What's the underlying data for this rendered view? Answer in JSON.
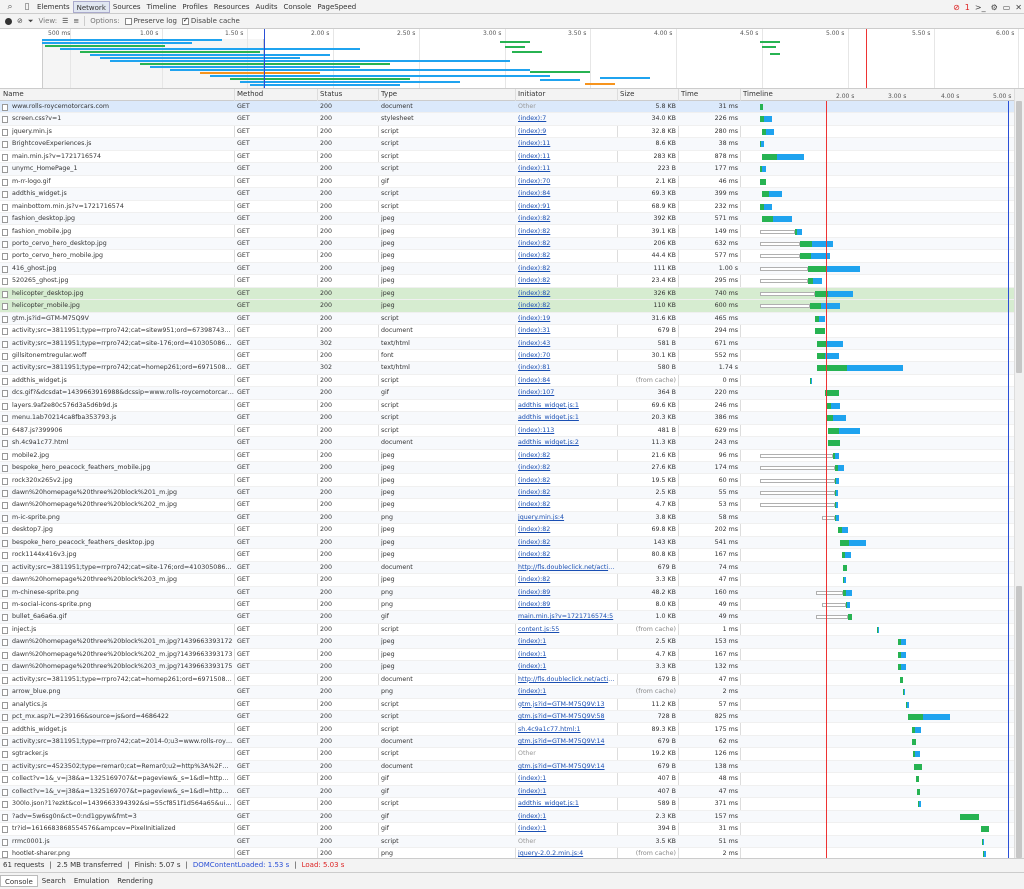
{
  "panel_tabs": [
    "Elements",
    "Network",
    "Sources",
    "Timeline",
    "Profiles",
    "Resources",
    "Audits",
    "Console",
    "PageSpeed"
  ],
  "active_tab": "Network",
  "error_count": "1",
  "toolbar": {
    "view_label": "View:",
    "options_label": "Options:",
    "preserve_log": "Preserve log",
    "disable_cache": "Disable cache"
  },
  "overview_ticks": [
    "500 ms",
    "1.00 s",
    "1.50 s",
    "2.00 s",
    "2.50 s",
    "3.00 s",
    "3.50 s",
    "4.00 s",
    "4.50 s",
    "5.00 s",
    "5.50 s",
    "6.00 s"
  ],
  "columns": {
    "name": "Name",
    "method": "Method",
    "status": "Status",
    "type": "Type",
    "initiator": "Initiator",
    "size": "Size",
    "time": "Time",
    "timeline": "Timeline"
  },
  "timeline_ticks": [
    "2.00 s",
    "3.00 s",
    "4.00 s",
    "5.00 s"
  ],
  "colors": {
    "waiting": "#27b352",
    "receiving": "#1fa3ef",
    "stalled": "#b0b0b0",
    "dns": "#f7941d",
    "load_line": "#e33",
    "dom_line": "#2a4fd6"
  },
  "requests": [
    {
      "name": "www.rolls-roycemotorcars.com",
      "method": "GET",
      "status": "200",
      "type": "document",
      "initiator": "Other",
      "size": "5.8 KB",
      "time": "31 ms"
    },
    {
      "name": "screen.css?v=1",
      "method": "GET",
      "status": "200",
      "type": "stylesheet",
      "initiator": "(index):7",
      "size": "34.0 KB",
      "time": "226 ms"
    },
    {
      "name": "jquery.min.js",
      "method": "GET",
      "status": "200",
      "type": "script",
      "initiator": "(index):9",
      "size": "32.8 KB",
      "time": "280 ms"
    },
    {
      "name": "BrightcoveExperiences.js",
      "method": "GET",
      "status": "200",
      "type": "script",
      "initiator": "(index):11",
      "size": "8.6 KB",
      "time": "38 ms"
    },
    {
      "name": "main.min.js?v=1721716574",
      "method": "GET",
      "status": "200",
      "type": "script",
      "initiator": "(index):11",
      "size": "283 KB",
      "time": "878 ms"
    },
    {
      "name": "unymc_HomePage_1",
      "method": "GET",
      "status": "200",
      "type": "script",
      "initiator": "(index):11",
      "size": "223 B",
      "time": "177 ms"
    },
    {
      "name": "m-rr-logo.gif",
      "method": "GET",
      "status": "200",
      "type": "gif",
      "initiator": "(index):70",
      "size": "2.1 KB",
      "time": "46 ms"
    },
    {
      "name": "addthis_widget.js",
      "method": "GET",
      "status": "200",
      "type": "script",
      "initiator": "(index):84",
      "size": "69.3 KB",
      "time": "399 ms"
    },
    {
      "name": "mainbottom.min.js?v=1721716574",
      "method": "GET",
      "status": "200",
      "type": "script",
      "initiator": "(index):91",
      "size": "68.9 KB",
      "time": "232 ms"
    },
    {
      "name": "fashion_desktop.jpg",
      "method": "GET",
      "status": "200",
      "type": "jpeg",
      "initiator": "(index):82",
      "size": "392 KB",
      "time": "571 ms"
    },
    {
      "name": "fashion_mobile.jpg",
      "method": "GET",
      "status": "200",
      "type": "jpeg",
      "initiator": "(index):82",
      "size": "39.1 KB",
      "time": "149 ms"
    },
    {
      "name": "porto_cervo_hero_desktop.jpg",
      "method": "GET",
      "status": "200",
      "type": "jpeg",
      "initiator": "(index):82",
      "size": "206 KB",
      "time": "632 ms"
    },
    {
      "name": "porto_cervo_hero_mobile.jpg",
      "method": "GET",
      "status": "200",
      "type": "jpeg",
      "initiator": "(index):82",
      "size": "44.4 KB",
      "time": "577 ms"
    },
    {
      "name": "416_ghost.jpg",
      "method": "GET",
      "status": "200",
      "type": "jpeg",
      "initiator": "(index):82",
      "size": "111 KB",
      "time": "1.00 s"
    },
    {
      "name": "520265_ghost.jpg",
      "method": "GET",
      "status": "200",
      "type": "jpeg",
      "initiator": "(index):82",
      "size": "23.4 KB",
      "time": "295 ms"
    },
    {
      "name": "helicopter_desktop.jpg",
      "method": "GET",
      "status": "200",
      "type": "jpeg",
      "initiator": "(index):82",
      "size": "326 KB",
      "time": "740 ms"
    },
    {
      "name": "helicopter_mobile.jpg",
      "method": "GET",
      "status": "200",
      "type": "jpeg",
      "initiator": "(index):82",
      "size": "110 KB",
      "time": "600 ms"
    },
    {
      "name": "gtm.js?id=GTM-M75Q9V",
      "method": "GET",
      "status": "200",
      "type": "script",
      "initiator": "(index):19",
      "size": "31.6 KB",
      "time": "465 ms"
    },
    {
      "name": "activity;src=3811951;type=rrpro742;cat=sitew951;ord=6739874342456.46",
      "method": "GET",
      "status": "200",
      "type": "document",
      "initiator": "(index):31",
      "size": "679 B",
      "time": "294 ms"
    },
    {
      "name": "activity;src=3811951;type=rrpro742;cat=site-176;ord=410305086988.95575",
      "method": "GET",
      "status": "302",
      "type": "text/html",
      "initiator": "(index):43",
      "size": "581 B",
      "time": "671 ms"
    },
    {
      "name": "gillsitonemtregular.woff",
      "method": "GET",
      "status": "200",
      "type": "font",
      "initiator": "(index):70",
      "size": "30.1 KB",
      "time": "552 ms"
    },
    {
      "name": "activity;src=3811951;type=rrpro742;cat=homep261;ord=6971508769784...",
      "method": "GET",
      "status": "302",
      "type": "text/html",
      "initiator": "(index):81",
      "size": "580 B",
      "time": "1.74 s"
    },
    {
      "name": "addthis_widget.js",
      "method": "GET",
      "status": "200",
      "type": "script",
      "initiator": "(index):84",
      "size": "(from cache)",
      "time": "0 ms"
    },
    {
      "name": "dcs.gif?&dcsdat=1439663916988&dcssip=www.rolls-roycemotorcars.com...",
      "method": "GET",
      "status": "200",
      "type": "gif",
      "initiator": "(index):107",
      "size": "364 B",
      "time": "220 ms"
    },
    {
      "name": "layers.9af2e80c576d3a5d6b9d.js",
      "method": "GET",
      "status": "200",
      "type": "script",
      "initiator": "addthis_widget.js:1",
      "size": "69.6 KB",
      "time": "246 ms"
    },
    {
      "name": "menu.1ab70214ca8fba353793.js",
      "method": "GET",
      "status": "200",
      "type": "script",
      "initiator": "addthis_widget.js:1",
      "size": "20.3 KB",
      "time": "386 ms"
    },
    {
      "name": "6487.js?399906",
      "method": "GET",
      "status": "200",
      "type": "script",
      "initiator": "(index):113",
      "size": "481 B",
      "time": "629 ms"
    },
    {
      "name": "sh.4c9a1c77.html",
      "method": "GET",
      "status": "200",
      "type": "document",
      "initiator": "addthis_widget.js:2",
      "size": "11.3 KB",
      "time": "243 ms"
    },
    {
      "name": "mobile2.jpg",
      "method": "GET",
      "status": "200",
      "type": "jpeg",
      "initiator": "(index):82",
      "size": "21.6 KB",
      "time": "96 ms"
    },
    {
      "name": "bespoke_hero_peacock_feathers_mobile.jpg",
      "method": "GET",
      "status": "200",
      "type": "jpeg",
      "initiator": "(index):82",
      "size": "27.6 KB",
      "time": "174 ms"
    },
    {
      "name": "rock320x265v2.jpg",
      "method": "GET",
      "status": "200",
      "type": "jpeg",
      "initiator": "(index):82",
      "size": "19.5 KB",
      "time": "60 ms"
    },
    {
      "name": "dawn%20homepage%20three%20block%201_m.jpg",
      "method": "GET",
      "status": "200",
      "type": "jpeg",
      "initiator": "(index):82",
      "size": "2.5 KB",
      "time": "55 ms"
    },
    {
      "name": "dawn%20homepage%20three%20block%202_m.jpg",
      "method": "GET",
      "status": "200",
      "type": "jpeg",
      "initiator": "(index):82",
      "size": "4.7 KB",
      "time": "53 ms"
    },
    {
      "name": "m-ic-sprite.png",
      "method": "GET",
      "status": "200",
      "type": "png",
      "initiator": "jquery.min.js:4",
      "size": "3.8 KB",
      "time": "58 ms"
    },
    {
      "name": "desktop7.jpg",
      "method": "GET",
      "status": "200",
      "type": "jpeg",
      "initiator": "(index):82",
      "size": "69.8 KB",
      "time": "202 ms"
    },
    {
      "name": "bespoke_hero_peacock_feathers_desktop.jpg",
      "method": "GET",
      "status": "200",
      "type": "jpeg",
      "initiator": "(index):82",
      "size": "143 KB",
      "time": "541 ms"
    },
    {
      "name": "rock1144x416v3.jpg",
      "method": "GET",
      "status": "200",
      "type": "jpeg",
      "initiator": "(index):82",
      "size": "80.8 KB",
      "time": "167 ms"
    },
    {
      "name": "activity;src=3811951;type=rrpro742;cat=site-176;ord=410305086988.95575",
      "method": "GET",
      "status": "200",
      "type": "document",
      "initiator": "http://fls.doubleclick.net/activit...",
      "size": "679 B",
      "time": "74 ms"
    },
    {
      "name": "dawn%20homepage%20three%20block%203_m.jpg",
      "method": "GET",
      "status": "200",
      "type": "jpeg",
      "initiator": "(index):82",
      "size": "3.3 KB",
      "time": "47 ms"
    },
    {
      "name": "m-chinese-sprite.png",
      "method": "GET",
      "status": "200",
      "type": "png",
      "initiator": "(index):89",
      "size": "48.2 KB",
      "time": "160 ms"
    },
    {
      "name": "m-social-icons-sprite.png",
      "method": "GET",
      "status": "200",
      "type": "png",
      "initiator": "(index):89",
      "size": "8.0 KB",
      "time": "49 ms"
    },
    {
      "name": "bullet_6a6a6a.gif",
      "method": "GET",
      "status": "200",
      "type": "gif",
      "initiator": "main.min.js?v=1721716574:5",
      "size": "1.0 KB",
      "time": "49 ms"
    },
    {
      "name": "inject.js",
      "method": "GET",
      "status": "200",
      "type": "script",
      "initiator": "content.js:55",
      "size": "(from cache)",
      "time": "1 ms"
    },
    {
      "name": "dawn%20homepage%20three%20block%201_m.jpg?1439663393172",
      "method": "GET",
      "status": "200",
      "type": "jpeg",
      "initiator": "(index):1",
      "size": "2.5 KB",
      "time": "153 ms"
    },
    {
      "name": "dawn%20homepage%20three%20block%202_m.jpg?1439663393173",
      "method": "GET",
      "status": "200",
      "type": "jpeg",
      "initiator": "(index):1",
      "size": "4.7 KB",
      "time": "167 ms"
    },
    {
      "name": "dawn%20homepage%20three%20block%203_m.jpg?1439663393175",
      "method": "GET",
      "status": "200",
      "type": "jpeg",
      "initiator": "(index):1",
      "size": "3.3 KB",
      "time": "132 ms"
    },
    {
      "name": "activity;src=3811951;type=rrpro742;cat=homep261;ord=6971508769784...",
      "method": "GET",
      "status": "200",
      "type": "document",
      "initiator": "http://fls.doubleclick.net/activit...",
      "size": "679 B",
      "time": "47 ms"
    },
    {
      "name": "arrow_blue.png",
      "method": "GET",
      "status": "200",
      "type": "png",
      "initiator": "(index):1",
      "size": "(from cache)",
      "time": "2 ms"
    },
    {
      "name": "analytics.js",
      "method": "GET",
      "status": "200",
      "type": "script",
      "initiator": "gtm.js?id=GTM-M75Q9V:13",
      "size": "11.2 KB",
      "time": "57 ms"
    },
    {
      "name": "pct_mx.asp?L=239166&source=js&ord=4686422",
      "method": "GET",
      "status": "200",
      "type": "script",
      "initiator": "gtm.js?id=GTM-M75Q9V:58",
      "size": "728 B",
      "time": "825 ms"
    },
    {
      "name": "addthis_widget.js",
      "method": "GET",
      "status": "200",
      "type": "script",
      "initiator": "sh.4c9a1c77.html:1",
      "size": "89.3 KB",
      "time": "175 ms"
    },
    {
      "name": "activity;src=3811951;type=rrpro742;cat=2014-0;u3=www.rolls-roycemoto...",
      "method": "GET",
      "status": "200",
      "type": "document",
      "initiator": "gtm.js?id=GTM-M75Q9V:14",
      "size": "679 B",
      "time": "62 ms"
    },
    {
      "name": "sgtracker.js",
      "method": "GET",
      "status": "200",
      "type": "script",
      "initiator": "Other",
      "size": "19.2 KB",
      "time": "126 ms"
    },
    {
      "name": "activity;src=4523502;type=remar0;cat=Remar0;u2=http%3A%2F%2Fwww...",
      "method": "GET",
      "status": "200",
      "type": "document",
      "initiator": "gtm.js?id=GTM-M75Q9V:14",
      "size": "679 B",
      "time": "138 ms"
    },
    {
      "name": "collect?v=1&_v=j38&a=1325169707&t=pageview&_s=1&dl=http%3A%2...",
      "method": "GET",
      "status": "200",
      "type": "gif",
      "initiator": "(index):1",
      "size": "407 B",
      "time": "48 ms"
    },
    {
      "name": "collect?v=1&_v=j38&a=1325169707&t=pageview&_s=1&dl=http%3A%2...",
      "method": "GET",
      "status": "200",
      "type": "gif",
      "initiator": "(index):1",
      "size": "407 B",
      "time": "47 ms"
    },
    {
      "name": "300lo.json?1?ezkt&col=1439663394392&si=55cf851f1d564a65&uid=52...",
      "method": "GET",
      "status": "200",
      "type": "script",
      "initiator": "addthis_widget.js:1",
      "size": "589 B",
      "time": "371 ms"
    },
    {
      "name": "?adv=5w6sg0n&ct=0:nd1gpyw&fmt=3",
      "method": "GET",
      "status": "200",
      "type": "gif",
      "initiator": "(index):1",
      "size": "2.3 KB",
      "time": "157 ms"
    },
    {
      "name": "tr?id=1616683868554576&ampcev=PixelInitialized",
      "method": "GET",
      "status": "200",
      "type": "gif",
      "initiator": "(index):1",
      "size": "394 B",
      "time": "31 ms"
    },
    {
      "name": "rrmc0001.js",
      "method": "GET",
      "status": "200",
      "type": "script",
      "initiator": "Other",
      "size": "3.5 KB",
      "time": "51 ms"
    },
    {
      "name": "hootlet-sharer.png",
      "method": "GET",
      "status": "200",
      "type": "png",
      "initiator": "jquery-2.0.2.min.js:4",
      "size": "(from cache)",
      "time": "2 ms"
    }
  ],
  "status_bar": {
    "requests": "61 requests",
    "transferred": "2.5 MB transferred",
    "finish": "Finish: 5.07 s",
    "dcl": "DOMContentLoaded: 1.53 s",
    "load": "Load: 5.03 s"
  },
  "drawer_tabs": [
    "Console",
    "Search",
    "Emulation",
    "Rendering"
  ]
}
